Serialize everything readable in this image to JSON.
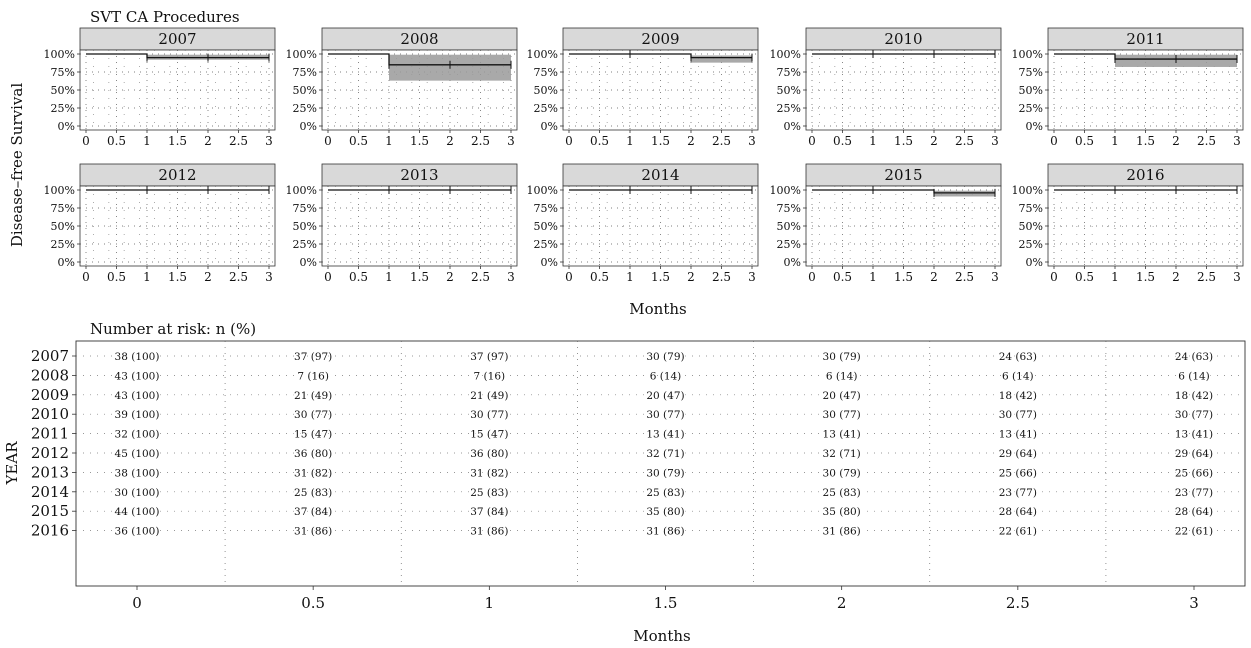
{
  "chart_data": [
    {
      "type": "line",
      "title": "SVT CA Procedures",
      "ylabel": "Disease–free Survival",
      "xlabel": "Months",
      "x_ticks": [
        "0",
        "0.5",
        "1",
        "1.5",
        "2",
        "2.5",
        "3"
      ],
      "y_ticks": [
        "0%",
        "25%",
        "50%",
        "75%",
        "100%"
      ],
      "xlim": [
        0,
        3
      ],
      "ylim": [
        0,
        1
      ],
      "grid": true,
      "panels": [
        {
          "year": "2007",
          "steps": [
            [
              0,
              1.0
            ],
            [
              1,
              0.95
            ],
            [
              3,
              0.95
            ]
          ],
          "ci": [
            [
              0,
              1.0,
              1.0
            ],
            [
              1,
              0.92,
              0.99
            ],
            [
              3,
              0.92,
              0.99
            ]
          ]
        },
        {
          "year": "2008",
          "steps": [
            [
              0,
              1.0
            ],
            [
              1,
              0.85
            ],
            [
              3,
              0.85
            ]
          ],
          "ci": [
            [
              0,
              1.0,
              1.0
            ],
            [
              1,
              0.63,
              0.99
            ],
            [
              3,
              0.63,
              0.99
            ]
          ]
        },
        {
          "year": "2009",
          "steps": [
            [
              0,
              1.0
            ],
            [
              2,
              0.95
            ],
            [
              3,
              0.95
            ]
          ],
          "ci": [
            [
              0,
              1.0,
              1.0
            ],
            [
              2,
              0.88,
              0.98
            ],
            [
              3,
              0.88,
              0.98
            ]
          ]
        },
        {
          "year": "2010",
          "steps": [
            [
              0,
              1.0
            ],
            [
              3,
              1.0
            ]
          ],
          "ci": []
        },
        {
          "year": "2011",
          "steps": [
            [
              0,
              1.0
            ],
            [
              1,
              0.93
            ],
            [
              3,
              0.93
            ]
          ],
          "ci": [
            [
              0,
              1.0,
              1.0
            ],
            [
              1,
              0.82,
              0.99
            ],
            [
              3,
              0.82,
              0.99
            ]
          ]
        },
        {
          "year": "2012",
          "steps": [
            [
              0,
              1.0
            ],
            [
              3,
              1.0
            ]
          ],
          "ci": []
        },
        {
          "year": "2013",
          "steps": [
            [
              0,
              1.0
            ],
            [
              3,
              1.0
            ]
          ],
          "ci": []
        },
        {
          "year": "2014",
          "steps": [
            [
              0,
              1.0
            ],
            [
              3,
              1.0
            ]
          ],
          "ci": []
        },
        {
          "year": "2015",
          "steps": [
            [
              0,
              1.0
            ],
            [
              2,
              0.96
            ],
            [
              3,
              0.96
            ]
          ],
          "ci": [
            [
              0,
              1.0,
              1.0
            ],
            [
              2,
              0.91,
              0.99
            ],
            [
              3,
              0.91,
              0.99
            ]
          ]
        },
        {
          "year": "2016",
          "steps": [
            [
              0,
              1.0
            ],
            [
              3,
              1.0
            ]
          ],
          "ci": []
        }
      ]
    },
    {
      "type": "table",
      "title": "Number at risk: n (%)",
      "ylabel": "YEAR",
      "xlabel": "Months",
      "columns": [
        "0",
        "0.5",
        "1",
        "1.5",
        "2",
        "2.5",
        "3"
      ],
      "rows": [
        {
          "year": "2007",
          "cells": [
            "38 (100)",
            "37 (97)",
            "37 (97)",
            "30 (79)",
            "30 (79)",
            "24 (63)",
            "24 (63)"
          ]
        },
        {
          "year": "2008",
          "cells": [
            "43 (100)",
            "7 (16)",
            "7 (16)",
            "6 (14)",
            "6 (14)",
            "6 (14)",
            "6 (14)"
          ]
        },
        {
          "year": "2009",
          "cells": [
            "43 (100)",
            "21 (49)",
            "21 (49)",
            "20 (47)",
            "20 (47)",
            "18 (42)",
            "18 (42)"
          ]
        },
        {
          "year": "2010",
          "cells": [
            "39 (100)",
            "30 (77)",
            "30 (77)",
            "30 (77)",
            "30 (77)",
            "30 (77)",
            "30 (77)"
          ]
        },
        {
          "year": "2011",
          "cells": [
            "32 (100)",
            "15 (47)",
            "15 (47)",
            "13 (41)",
            "13 (41)",
            "13 (41)",
            "13 (41)"
          ]
        },
        {
          "year": "2012",
          "cells": [
            "45 (100)",
            "36 (80)",
            "36 (80)",
            "32 (71)",
            "32 (71)",
            "29 (64)",
            "29 (64)"
          ]
        },
        {
          "year": "2013",
          "cells": [
            "38 (100)",
            "31 (82)",
            "31 (82)",
            "30 (79)",
            "30 (79)",
            "25 (66)",
            "25 (66)"
          ]
        },
        {
          "year": "2014",
          "cells": [
            "30 (100)",
            "25 (83)",
            "25 (83)",
            "25 (83)",
            "25 (83)",
            "23 (77)",
            "23 (77)"
          ]
        },
        {
          "year": "2015",
          "cells": [
            "44 (100)",
            "37 (84)",
            "37 (84)",
            "35 (80)",
            "35 (80)",
            "28 (64)",
            "28 (64)"
          ]
        },
        {
          "year": "2016",
          "cells": [
            "36 (100)",
            "31 (86)",
            "31 (86)",
            "31 (86)",
            "31 (86)",
            "22 (61)",
            "22 (61)"
          ]
        }
      ]
    }
  ]
}
